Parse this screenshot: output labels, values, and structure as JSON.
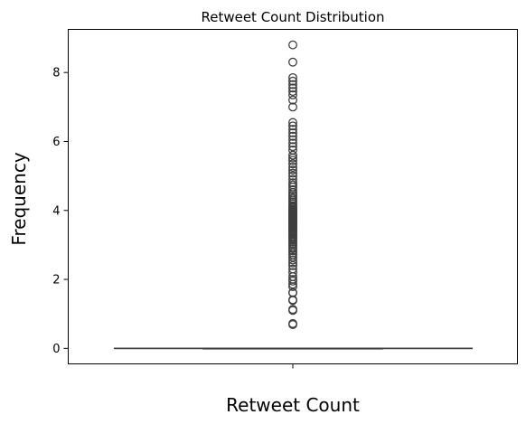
{
  "chart_data": {
    "type": "box",
    "title": "Retweet Count Distribution",
    "xlabel": "Retweet Count",
    "ylabel": "Frequency",
    "ylim": [
      -0.45,
      9.25
    ],
    "yticks": [
      0,
      2,
      4,
      6,
      8
    ],
    "grid": false,
    "box": {
      "whisker_low": 0,
      "q1": 0,
      "median": 0,
      "q3": 0,
      "whisker_high": 0,
      "outliers": [
        0.69,
        0.72,
        1.1,
        1.13,
        1.39,
        1.41,
        1.61,
        1.62,
        1.79,
        1.86,
        1.95,
        2.0,
        2.08,
        2.2,
        2.3,
        2.4,
        2.48,
        2.56,
        2.64,
        2.71,
        2.77,
        2.83,
        2.89,
        2.94,
        3.0,
        3.04,
        3.09,
        3.14,
        3.18,
        3.22,
        3.26,
        3.3,
        3.33,
        3.37,
        3.4,
        3.43,
        3.47,
        3.5,
        3.53,
        3.56,
        3.58,
        3.61,
        3.64,
        3.66,
        3.69,
        3.71,
        3.74,
        3.76,
        3.78,
        3.81,
        3.83,
        3.85,
        3.87,
        3.89,
        3.91,
        3.93,
        3.95,
        3.97,
        3.99,
        4.01,
        4.04,
        4.08,
        4.11,
        4.14,
        4.2,
        4.25,
        4.3,
        4.35,
        4.41,
        4.46,
        4.52,
        4.6,
        4.68,
        4.74,
        4.8,
        4.9,
        5.0,
        5.08,
        5.17,
        5.25,
        5.35,
        5.45,
        5.52,
        5.6,
        5.75,
        5.85,
        5.95,
        6.05,
        6.15,
        6.25,
        6.35,
        6.45,
        6.55,
        7.0,
        7.2,
        7.35,
        7.45,
        7.55,
        7.65,
        7.75,
        7.85,
        8.3,
        8.8
      ]
    },
    "colors": {
      "box_edge": "#3f3f3f",
      "outlier_edge": "#3f3f3f",
      "axes": "#000000"
    }
  }
}
